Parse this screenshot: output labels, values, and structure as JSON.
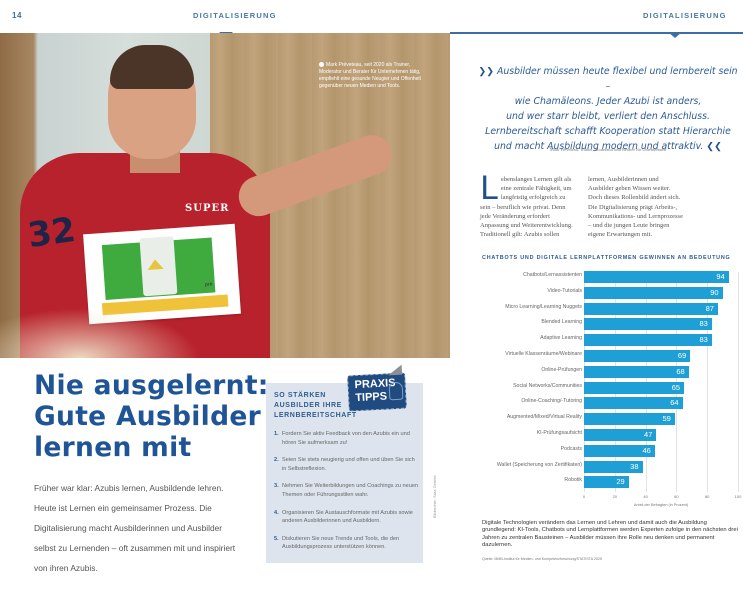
{
  "header": {
    "page_number": "14",
    "section_left": "DIGITALISIERUNG",
    "section_right": "DIGITALISIERUNG"
  },
  "photo": {
    "caption": "Mark Préveteau, seit 2020 als Trainer, Moderator und Berater für Unternehmen tätig, empfiehlt eine gesunde Neugier und Offenheit gegenüber neuen Medien und Tools.",
    "shirt_number": "32",
    "shirt_logo": "SUPER",
    "card_logo": "pré"
  },
  "article": {
    "headline": [
      "Nie ausgelernt:",
      "Gute Ausbilder",
      "lernen mit"
    ],
    "lead": "Früher war klar: Azubis lernen, Ausbildende lehren. Heute ist Lernen ein gemeinsamer Prozess. Die Digitalisierung macht Ausbilderinnen und Ausbilder selbst zu Lernenden – oft zusammen mit und inspiriert von ihren Azubis.",
    "photo_credit": "Bildrechte: Sara Gehrke"
  },
  "tips": {
    "badge_line1": "PRAXIS",
    "badge_line2": "TIPPS",
    "title": [
      "SO STÄRKEN",
      "AUSBILDER IHRE",
      "LERNBEREITSCHAFT"
    ],
    "items": [
      {
        "n": "1.",
        "text": "Fordern Sie aktiv Feedback von den Azubis ein und hören Sie aufmerksam zu!"
      },
      {
        "n": "2.",
        "text": "Seien Sie stets neugierig und offen und üben Sie sich in Selbstreflexion."
      },
      {
        "n": "3.",
        "text": "Nehmen Sie Weiterbildungen und Coachings zu neuen Themen oder Führungsstilen wahr."
      },
      {
        "n": "4.",
        "text": "Organisieren Sie Austauschformate mit Azubis sowie anderen Ausbilderinnen und Ausbildern."
      },
      {
        "n": "5.",
        "text": "Diskutieren Sie neue Trends und Tools, die den Ausbildungsprozess unterstützen können."
      }
    ]
  },
  "quote": {
    "open_mark": "❯❯",
    "close_mark": "❮❮",
    "lines": [
      "Ausbilder müssen heute flexibel und lernbereit sein –",
      "wie Chamäleons. Jeder Azubi ist anders,",
      "und wer starr bleibt, verliert den Anschluss.",
      "Lernbereitschaft schafft Kooperation statt Hierarchie",
      "und macht Ausbildung modern und attraktiv."
    ],
    "source": "Mark Préveteau, Trainer, Moderator und Berater für Unternehmen"
  },
  "body": {
    "dropcap": "L",
    "col1": "ebenslanges Lernen gilt als eine zentrale Fähigkeit, um langfristig erfolgreich zu sein – beruflich wie privat. Denn jede Veränderung erfordert Anpassung und Weiterentwicklung. Traditionell gilt: Azubis sollen",
    "col2": "lernen, Ausbilderinnen und Ausbilder geben Wissen weiter. Doch dieses Rollenbild ändert sich. Die Digitalisierung prägt Arbeits-, Kommunikations- und Lernprozesse – und die jungen Leute bringen eigene Erwartungen mit."
  },
  "chart_data": {
    "type": "bar",
    "orientation": "horizontal",
    "title": "CHATBOTS UND DIGITALE LERNPLATTFORMEN GEWINNEN AN BEDEUTUNG",
    "categories": [
      "Chatbots/Lernassistenten",
      "Video-Tutorials",
      "Micro Learning/Learning Nuggets",
      "Blended Learning",
      "Adaptive Learning",
      "Virtuelle Klassenräume/Webinare",
      "Online-Prüfungen",
      "Social Networks/Communities",
      "Online-Coaching/-Tutoring",
      "Augmented/Mixed/Virtual Reality",
      "KI-Prüfungsaufsicht",
      "Podcasts",
      "Wallet (Speicherung von Zertifikaten)",
      "Robotik"
    ],
    "values": [
      94,
      90,
      87,
      83,
      83,
      69,
      68,
      65,
      64,
      59,
      47,
      46,
      38,
      29
    ],
    "xlabel": "Anteil der Befragten (in Prozent)",
    "ylabel": "",
    "xlim": [
      0,
      100
    ],
    "xticks": [
      "0",
      "20",
      "40",
      "60",
      "80",
      "100"
    ],
    "grid": true,
    "bar_color": "#1e9fd6",
    "legend": null
  },
  "chart_summary": "Digitale Technologien verändern das Lernen und Lehren und damit auch die Ausbildung grundlegend: KI-Tools, Chatbots und Lernplattformen werden Experten zufolge in den nächsten drei Jahren zu zentralen Bausteinen – Ausbilder müssen ihre Rolle neu denken und permanent dazulernen.",
  "chart_source": "Quelle: MMB-Institut für Medien- und Kompetenzforschung/STATISTA 2025",
  "colors": {
    "brand_blue": "#1f5596",
    "bar_blue": "#1e9fd6",
    "tips_bg": "#dde4ed",
    "badge_blue": "#1f4b80"
  }
}
